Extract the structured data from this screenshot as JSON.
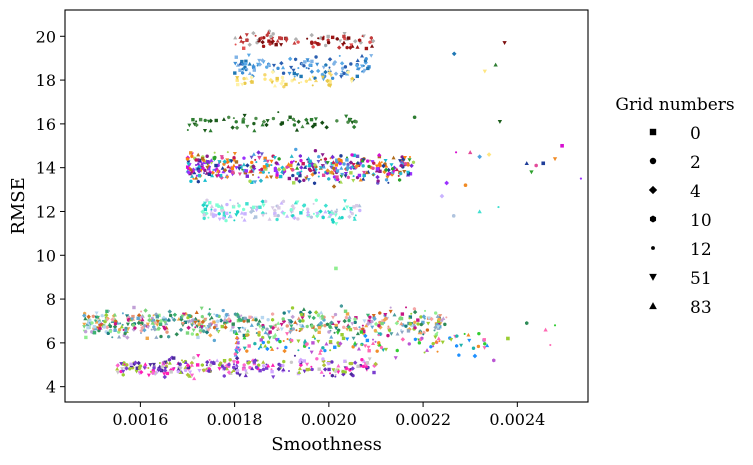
{
  "chart_data": {
    "type": "scatter",
    "title": "",
    "xlabel": "Smoothness",
    "ylabel": "RMSE",
    "xlim": [
      0.00144,
      0.00255
    ],
    "ylim": [
      3.3,
      21.2
    ],
    "x_ticks": [
      0.0016,
      0.0018,
      0.002,
      0.0022,
      0.0024
    ],
    "x_tick_labels": [
      "0.0016",
      "0.0018",
      "0.0020",
      "0.0022",
      "0.0024"
    ],
    "y_ticks": [
      4,
      6,
      8,
      10,
      12,
      14,
      16,
      18,
      20
    ],
    "y_tick_labels": [
      "4",
      "6",
      "8",
      "10",
      "12",
      "14",
      "16",
      "18",
      "20"
    ],
    "grid": false,
    "legend": {
      "title": "Grid numbers",
      "placement": "outside-right",
      "entries": [
        {
          "label": "0",
          "marker": "square"
        },
        {
          "label": "2",
          "marker": "circle"
        },
        {
          "label": "4",
          "marker": "diamond"
        },
        {
          "label": "10",
          "marker": "hexagon"
        },
        {
          "label": "12",
          "marker": "point"
        },
        {
          "label": "51",
          "marker": "triangle-down"
        },
        {
          "label": "83",
          "marker": "triangle-up"
        }
      ]
    },
    "clusters": [
      {
        "x_range": [
          0.0018,
          0.0021
        ],
        "y_center": 19.8,
        "y_spread": 0.35,
        "count": 90,
        "colors": [
          "#7b0d0d",
          "#a01616",
          "#c23b3b",
          "#b0b0b0",
          "#e25353"
        ]
      },
      {
        "x_range": [
          0.0018,
          0.0021
        ],
        "y_center": 18.6,
        "y_spread": 0.5,
        "count": 110,
        "colors": [
          "#1f77b4",
          "#5aa9e6",
          "#2b5fb0",
          "#7fb3e6",
          "#3d8fd6"
        ]
      },
      {
        "x_range": [
          0.0018,
          0.00205
        ],
        "y_center": 18.0,
        "y_spread": 0.35,
        "count": 45,
        "colors": [
          "#ffe680",
          "#f5d76e",
          "#fff2a8",
          "#e9c94a"
        ]
      },
      {
        "x_range": [
          0.0017,
          0.00207
        ],
        "y_center": 16.1,
        "y_spread": 0.35,
        "count": 60,
        "colors": [
          "#1c5e1c",
          "#2e7d32",
          "#4c8c4a",
          "#134d13"
        ]
      },
      {
        "x_range": [
          0.0017,
          0.00218
        ],
        "y_center": 14.0,
        "y_spread": 0.6,
        "count": 420,
        "colors": [
          "#d60fd0",
          "#9b30ff",
          "#2ab7ca",
          "#f08a24",
          "#1f3d99",
          "#2ca02c",
          "#e34a9a",
          "#7a2bd9",
          "#b06d1d",
          "#4fa3e0",
          "#a6d854",
          "#c2185b",
          "#6a5acd",
          "#ff7f0e",
          "#17becf",
          "#8b1a8b"
        ]
      },
      {
        "x_range": [
          0.00173,
          0.00207
        ],
        "y_center": 12.0,
        "y_spread": 0.45,
        "count": 150,
        "colors": [
          "#40e0d0",
          "#7fffd4",
          "#c9b3ff",
          "#d8cbe6",
          "#b0c4de",
          "#1fd3c6"
        ]
      },
      {
        "x_range": [
          0.00148,
          0.00225
        ],
        "y_center": 6.9,
        "y_spread": 0.55,
        "count": 560,
        "colors": [
          "#5fa8d3",
          "#1b7f7f",
          "#2e8b57",
          "#90ee90",
          "#7cd67c",
          "#f4a7a7",
          "#c1a0d6",
          "#d2691e",
          "#f0a84b",
          "#9acd32",
          "#3cb371",
          "#8fa7c4",
          "#b7d7f0",
          "#e9967a",
          "#4a9d9d",
          "#c71585"
        ]
      },
      {
        "x_range": [
          0.0018,
          0.00235
        ],
        "y_center": 6.0,
        "y_spread": 0.5,
        "count": 140,
        "colors": [
          "#f28c28",
          "#32cd32",
          "#ff69b4",
          "#1e90ff",
          "#9acd32",
          "#ba55d3",
          "#20b2aa"
        ]
      },
      {
        "x_range": [
          0.00155,
          0.0021
        ],
        "y_center": 4.9,
        "y_spread": 0.4,
        "count": 280,
        "colors": [
          "#ff1fb4",
          "#ff66cc",
          "#b0c23a",
          "#9acd32",
          "#6a2fbf",
          "#7b3fd0",
          "#4b2a9b",
          "#d2a7ff",
          "#c9c9c9"
        ]
      }
    ],
    "outliers": [
      {
        "x": 0.002266,
        "y": 19.2,
        "color": "#1f77b4"
      },
      {
        "x": 0.002373,
        "y": 19.7,
        "color": "#7b0d0d"
      },
      {
        "x": 0.002354,
        "y": 18.7,
        "color": "#2e7d32"
      },
      {
        "x": 0.002331,
        "y": 18.4,
        "color": "#ffe680"
      },
      {
        "x": 0.002363,
        "y": 16.1,
        "color": "#1c5e1c"
      },
      {
        "x": 0.002182,
        "y": 16.3,
        "color": "#2e7d32"
      },
      {
        "x": 0.002495,
        "y": 15.0,
        "color": "#d60fd0"
      },
      {
        "x": 0.00248,
        "y": 14.4,
        "color": "#f08a24"
      },
      {
        "x": 0.002455,
        "y": 14.2,
        "color": "#1f3d99"
      },
      {
        "x": 0.00244,
        "y": 14.1,
        "color": "#e34a9a"
      },
      {
        "x": 0.00243,
        "y": 13.8,
        "color": "#2ca02c"
      },
      {
        "x": 0.00242,
        "y": 14.2,
        "color": "#1f3d99"
      },
      {
        "x": 0.002535,
        "y": 13.5,
        "color": "#9b30ff"
      },
      {
        "x": 0.00234,
        "y": 14.6,
        "color": "#ffe680"
      },
      {
        "x": 0.00232,
        "y": 14.5,
        "color": "#4fa3e0"
      },
      {
        "x": 0.0023,
        "y": 14.7,
        "color": "#e34a9a"
      },
      {
        "x": 0.00227,
        "y": 14.7,
        "color": "#d60fd0"
      },
      {
        "x": 0.00229,
        "y": 13.2,
        "color": "#f08a24"
      },
      {
        "x": 0.00225,
        "y": 13.3,
        "color": "#9b30ff"
      },
      {
        "x": 0.00224,
        "y": 12.7,
        "color": "#c9b3ff"
      },
      {
        "x": 0.002265,
        "y": 11.8,
        "color": "#b0c4de"
      },
      {
        "x": 0.00232,
        "y": 12.0,
        "color": "#40e0d0"
      },
      {
        "x": 0.00236,
        "y": 12.2,
        "color": "#40e0d0"
      },
      {
        "x": 0.002015,
        "y": 9.4,
        "color": "#90ee90"
      },
      {
        "x": 0.00248,
        "y": 6.8,
        "color": "#32cd32"
      },
      {
        "x": 0.00246,
        "y": 6.6,
        "color": "#ff69b4"
      },
      {
        "x": 0.00242,
        "y": 6.9,
        "color": "#2e8b57"
      },
      {
        "x": 0.00247,
        "y": 5.9,
        "color": "#ff69b4"
      },
      {
        "x": 0.00238,
        "y": 6.2,
        "color": "#9acd32"
      },
      {
        "x": 0.00235,
        "y": 5.2,
        "color": "#ba55d3"
      },
      {
        "x": 0.00231,
        "y": 5.4,
        "color": "#1e90ff"
      }
    ]
  }
}
